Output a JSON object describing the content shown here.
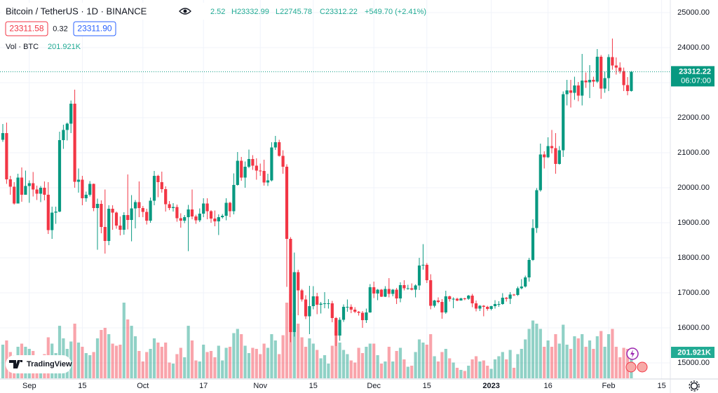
{
  "chart_data": {
    "type": "candlestick",
    "title": "Bitcoin / TetherUS · 1D · BINANCE",
    "legend_values": [
      "2.52",
      "H23332.99",
      "L22745.78",
      "C23312.22",
      "+549.70 (+2.41%)"
    ],
    "bid": "23311.58",
    "spread": "0.32",
    "ask": "23311.90",
    "volume_title": "Vol · BTC",
    "volume_last_label": "201.921K",
    "countdown": "06:07:00",
    "logo": "TradingView",
    "up_color": "#089981",
    "down_color": "#f23645",
    "grid": true,
    "ylim": [
      15000,
      25000
    ],
    "yticks": [
      {
        "value": 15000,
        "label": "15000.00"
      },
      {
        "value": 16000,
        "label": "16000.00"
      },
      {
        "value": 17000,
        "label": "17000.00"
      },
      {
        "value": 18000,
        "label": "18000.00"
      },
      {
        "value": 19000,
        "label": "19000.00"
      },
      {
        "value": 20000,
        "label": "20000.00"
      },
      {
        "value": 21000,
        "label": "21000.00"
      },
      {
        "value": 22000,
        "label": "22000.00"
      },
      {
        "value": 23000,
        "label": "23000.00"
      },
      {
        "value": 24000,
        "label": "24000.00"
      },
      {
        "value": 25000,
        "label": "25000.00"
      }
    ],
    "xticks": [
      {
        "value": 7,
        "label": "Sep"
      },
      {
        "value": 21,
        "label": "15"
      },
      {
        "value": 37,
        "label": "Oct"
      },
      {
        "value": 53,
        "label": "17"
      },
      {
        "value": 68,
        "label": "Nov"
      },
      {
        "value": 82,
        "label": "15"
      },
      {
        "value": 98,
        "label": "Dec"
      },
      {
        "value": 112,
        "label": "15"
      },
      {
        "value": 129,
        "label": "2023"
      },
      {
        "value": 144,
        "label": "16"
      },
      {
        "value": 160,
        "label": "Feb"
      },
      {
        "value": 174,
        "label": "15"
      }
    ],
    "ohlc": [
      [
        21370,
        21820,
        21310,
        21560
      ],
      [
        21560,
        21860,
        20110,
        20240
      ],
      [
        20240,
        20340,
        19800,
        20030
      ],
      [
        20030,
        20160,
        19520,
        19550
      ],
      [
        19550,
        20400,
        19550,
        20290
      ],
      [
        20290,
        20580,
        19600,
        19800
      ],
      [
        19800,
        20490,
        19800,
        20050
      ],
      [
        20050,
        20210,
        19570,
        20130
      ],
      [
        20130,
        20450,
        19750,
        19950
      ],
      [
        19950,
        20060,
        19650,
        19830
      ],
      [
        19830,
        20050,
        19590,
        20000
      ],
      [
        20000,
        20180,
        19640,
        19800
      ],
      [
        19800,
        20160,
        18680,
        18790
      ],
      [
        18790,
        19460,
        18540,
        19290
      ],
      [
        19290,
        19460,
        18970,
        19320
      ],
      [
        19320,
        21600,
        19300,
        21360
      ],
      [
        21360,
        21800,
        21110,
        21650
      ],
      [
        21650,
        21860,
        21350,
        21830
      ],
      [
        21830,
        22490,
        21560,
        22400
      ],
      [
        22400,
        22800,
        20000,
        20170
      ],
      [
        20170,
        20550,
        19860,
        20230
      ],
      [
        20230,
        20340,
        19500,
        19700
      ],
      [
        19700,
        19890,
        19600,
        19800
      ],
      [
        19800,
        20190,
        19750,
        20110
      ],
      [
        20110,
        20120,
        19330,
        19420
      ],
      [
        19420,
        19690,
        18230,
        19540
      ],
      [
        19540,
        19640,
        18700,
        18880
      ],
      [
        18880,
        19950,
        18120,
        18480
      ],
      [
        18480,
        19500,
        18360,
        19400
      ],
      [
        19400,
        19500,
        18800,
        19290
      ],
      [
        19290,
        19320,
        18830,
        18920
      ],
      [
        18920,
        19180,
        18640,
        18800
      ],
      [
        18800,
        19300,
        18660,
        19220
      ],
      [
        19220,
        20380,
        18810,
        19080
      ],
      [
        19080,
        19790,
        18470,
        19410
      ],
      [
        19410,
        19650,
        18840,
        19590
      ],
      [
        19590,
        20180,
        19160,
        19420
      ],
      [
        19420,
        19480,
        19160,
        19310
      ],
      [
        19310,
        19400,
        18950,
        19060
      ],
      [
        19060,
        19720,
        19000,
        19630
      ],
      [
        19630,
        20480,
        19500,
        20340
      ],
      [
        20340,
        20370,
        19730,
        20160
      ],
      [
        20160,
        20460,
        19860,
        19960
      ],
      [
        19960,
        20040,
        19320,
        19530
      ],
      [
        19530,
        19620,
        19360,
        19420
      ],
      [
        19420,
        19560,
        19320,
        19450
      ],
      [
        19450,
        19520,
        19030,
        19130
      ],
      [
        19130,
        19270,
        18860,
        19060
      ],
      [
        19060,
        19220,
        18990,
        19160
      ],
      [
        19160,
        19510,
        18190,
        19380
      ],
      [
        19380,
        19950,
        19100,
        19180
      ],
      [
        19180,
        19230,
        18970,
        19070
      ],
      [
        19070,
        19410,
        19020,
        19260
      ],
      [
        19260,
        19700,
        19160,
        19550
      ],
      [
        19550,
        19700,
        19100,
        19330
      ],
      [
        19330,
        19360,
        19000,
        19120
      ],
      [
        19120,
        19350,
        18900,
        19040
      ],
      [
        19040,
        19240,
        18650,
        19160
      ],
      [
        19160,
        19250,
        19120,
        19200
      ],
      [
        19200,
        19700,
        19070,
        19570
      ],
      [
        19570,
        19600,
        19160,
        19330
      ],
      [
        19330,
        20410,
        19240,
        20080
      ],
      [
        20080,
        21020,
        20060,
        20770
      ],
      [
        20770,
        20880,
        20200,
        20290
      ],
      [
        20290,
        20750,
        20000,
        20600
      ],
      [
        20600,
        21090,
        20560,
        20820
      ],
      [
        20820,
        20930,
        20510,
        20630
      ],
      [
        20630,
        20840,
        20230,
        20490
      ],
      [
        20490,
        20690,
        20340,
        20480
      ],
      [
        20480,
        20800,
        20060,
        20150
      ],
      [
        20150,
        20400,
        20050,
        20210
      ],
      [
        20210,
        21300,
        20180,
        21150
      ],
      [
        21150,
        21480,
        21080,
        21300
      ],
      [
        21300,
        21370,
        20890,
        20910
      ],
      [
        20910,
        21070,
        20400,
        20600
      ],
      [
        20600,
        20670,
        17170,
        18540
      ],
      [
        18540,
        18590,
        15590,
        15880
      ],
      [
        15880,
        18150,
        15750,
        17590
      ],
      [
        17590,
        17660,
        16360,
        17070
      ],
      [
        17070,
        17110,
        16750,
        16810
      ],
      [
        16810,
        16930,
        16250,
        16330
      ],
      [
        16330,
        17200,
        15820,
        16620
      ],
      [
        16620,
        17190,
        16530,
        16900
      ],
      [
        16900,
        17000,
        16390,
        16660
      ],
      [
        16660,
        16740,
        16410,
        16690
      ],
      [
        16690,
        17020,
        16560,
        16700
      ],
      [
        16700,
        16820,
        16550,
        16700
      ],
      [
        16700,
        16770,
        16160,
        16280
      ],
      [
        16280,
        16310,
        15480,
        15780
      ],
      [
        15780,
        16300,
        15630,
        16230
      ],
      [
        16230,
        16670,
        16170,
        16600
      ],
      [
        16600,
        16810,
        16460,
        16600
      ],
      [
        16600,
        16670,
        16420,
        16520
      ],
      [
        16520,
        16590,
        16420,
        16460
      ],
      [
        16460,
        16480,
        16350,
        16430
      ],
      [
        16430,
        16480,
        16000,
        16220
      ],
      [
        16220,
        16550,
        16140,
        16440
      ],
      [
        16440,
        17250,
        16430,
        17160
      ],
      [
        17160,
        17320,
        16850,
        16980
      ],
      [
        16980,
        17110,
        16790,
        17090
      ],
      [
        17090,
        17110,
        16880,
        16890
      ],
      [
        16890,
        17190,
        16880,
        17110
      ],
      [
        17110,
        17420,
        16870,
        16970
      ],
      [
        16970,
        17110,
        16900,
        17090
      ],
      [
        17090,
        17140,
        16680,
        16840
      ],
      [
        16840,
        17300,
        16730,
        17220
      ],
      [
        17220,
        17360,
        17070,
        17130
      ],
      [
        17130,
        17230,
        17090,
        17130
      ],
      [
        17130,
        17270,
        17070,
        17090
      ],
      [
        17090,
        17240,
        16870,
        17210
      ],
      [
        17210,
        18000,
        17080,
        17780
      ],
      [
        17780,
        18390,
        17660,
        17800
      ],
      [
        17800,
        17850,
        17280,
        17360
      ],
      [
        17360,
        17530,
        16530,
        16630
      ],
      [
        16630,
        16800,
        16580,
        16780
      ],
      [
        16780,
        16870,
        16700,
        16740
      ],
      [
        16740,
        16820,
        16260,
        16440
      ],
      [
        16440,
        17060,
        16400,
        16900
      ],
      [
        16900,
        16920,
        16750,
        16820
      ],
      [
        16820,
        16870,
        16560,
        16830
      ],
      [
        16830,
        16860,
        16760,
        16780
      ],
      [
        16780,
        16860,
        16780,
        16840
      ],
      [
        16840,
        16860,
        16790,
        16830
      ],
      [
        16830,
        16940,
        16800,
        16920
      ],
      [
        16920,
        16970,
        16590,
        16700
      ],
      [
        16700,
        16780,
        16470,
        16550
      ],
      [
        16550,
        16650,
        16480,
        16630
      ],
      [
        16630,
        16650,
        16330,
        16600
      ],
      [
        16600,
        16630,
        16490,
        16540
      ],
      [
        16540,
        16630,
        16500,
        16620
      ],
      [
        16620,
        16790,
        16550,
        16680
      ],
      [
        16680,
        16760,
        16600,
        16680
      ],
      [
        16680,
        16990,
        16660,
        16860
      ],
      [
        16860,
        16880,
        16750,
        16830
      ],
      [
        16830,
        17020,
        16680,
        16950
      ],
      [
        16950,
        16970,
        16910,
        16940
      ],
      [
        16940,
        17180,
        16910,
        17130
      ],
      [
        17130,
        17390,
        17100,
        17180
      ],
      [
        17180,
        17490,
        17150,
        17440
      ],
      [
        17440,
        18000,
        17320,
        17940
      ],
      [
        17940,
        19100,
        17910,
        18850
      ],
      [
        18850,
        19990,
        18710,
        19930
      ],
      [
        19930,
        21260,
        19890,
        20950
      ],
      [
        20950,
        21040,
        20550,
        20870
      ],
      [
        20870,
        21440,
        20850,
        21190
      ],
      [
        21190,
        21650,
        20980,
        21130
      ],
      [
        21130,
        21560,
        20400,
        20680
      ],
      [
        20680,
        21190,
        20660,
        21070
      ],
      [
        21070,
        22750,
        20880,
        22670
      ],
      [
        22670,
        23080,
        22350,
        22780
      ],
      [
        22780,
        23080,
        22290,
        22710
      ],
      [
        22710,
        23170,
        22510,
        22920
      ],
      [
        22920,
        23020,
        22470,
        22630
      ],
      [
        22630,
        23820,
        22350,
        23060
      ],
      [
        23060,
        23290,
        22850,
        23010
      ],
      [
        23010,
        23500,
        22560,
        23080
      ],
      [
        23080,
        23170,
        22880,
        23030
      ],
      [
        23030,
        23960,
        22990,
        23740
      ],
      [
        23740,
        23790,
        22540,
        22830
      ],
      [
        22830,
        23310,
        22710,
        23130
      ],
      [
        23130,
        23810,
        22760,
        23730
      ],
      [
        23730,
        24260,
        23370,
        23490
      ],
      [
        23490,
        23720,
        23230,
        23430
      ],
      [
        23430,
        23580,
        23260,
        23330
      ],
      [
        23330,
        23430,
        22760,
        22930
      ],
      [
        22930,
        23160,
        22640,
        22760
      ],
      [
        22762.52,
        23332.99,
        22745.78,
        23312.22
      ]
    ],
    "volume": [
      320000,
      360000,
      250000,
      220000,
      300000,
      330000,
      300000,
      280000,
      260000,
      190000,
      150000,
      230000,
      390000,
      330000,
      240000,
      500000,
      380000,
      280000,
      350000,
      520000,
      340000,
      300000,
      240000,
      220000,
      250000,
      380000,
      460000,
      480000,
      420000,
      330000,
      310000,
      320000,
      720000,
      560000,
      500000,
      400000,
      260000,
      160000,
      250000,
      280000,
      380000,
      340000,
      300000,
      340000,
      150000,
      140000,
      230000,
      290000,
      200000,
      500000,
      360000,
      170000,
      160000,
      320000,
      250000,
      260000,
      200000,
      310000,
      170000,
      290000,
      300000,
      430000,
      470000,
      420000,
      310000,
      240000,
      290000,
      280000,
      230000,
      330000,
      290000,
      420000,
      360000,
      230000,
      410000,
      720000,
      800000,
      620000,
      520000,
      390000,
      300000,
      380000,
      330000,
      270000,
      190000,
      220000,
      140000,
      310000,
      450000,
      340000,
      270000,
      230000,
      170000,
      150000,
      290000,
      240000,
      300000,
      330000,
      330000,
      220000,
      140000,
      160000,
      300000,
      160000,
      260000,
      290000,
      180000,
      110000,
      120000,
      250000,
      370000,
      340000,
      320000,
      420000,
      210000,
      160000,
      250000,
      280000,
      190000,
      150000,
      100000,
      80000,
      70000,
      120000,
      180000,
      210000,
      160000,
      170000,
      120000,
      90000,
      180000,
      210000,
      250000,
      180000,
      270000,
      100000,
      230000,
      280000,
      370000,
      470000,
      550000,
      520000,
      470000,
      300000,
      360000,
      300000,
      420000,
      330000,
      510000,
      320000,
      280000,
      400000,
      380000,
      420000,
      300000,
      360000,
      280000,
      400000,
      450000,
      300000,
      420000,
      470000,
      300000,
      200000,
      290000,
      280000,
      201921
    ]
  }
}
